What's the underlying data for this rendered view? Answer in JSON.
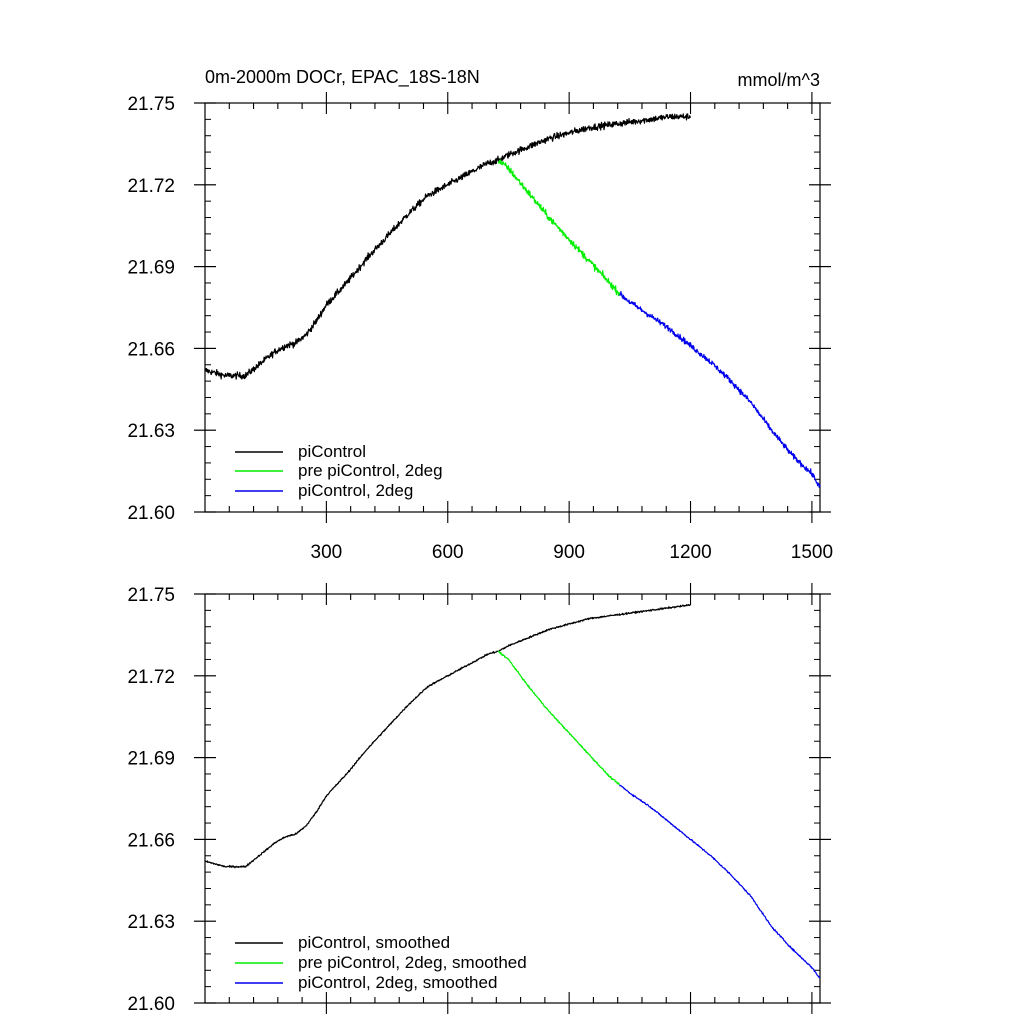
{
  "chart_data": [
    {
      "type": "line",
      "panel": "top",
      "title": "0m-2000m DOCr, EPAC_18S-18N",
      "units": "mmol/m^3",
      "xlabel": "",
      "ylabel": "",
      "xlim": [
        0,
        1520
      ],
      "ylim": [
        21.6,
        21.75
      ],
      "xticks": [
        300,
        600,
        900,
        1200,
        1500
      ],
      "xtick_labels": [
        "300",
        "600",
        "900",
        "1200",
        "1500"
      ],
      "yticks": [
        21.6,
        21.63,
        21.66,
        21.69,
        21.72,
        21.75
      ],
      "ytick_labels": [
        "21.60",
        "21.63",
        "21.66",
        "21.69",
        "21.72",
        "21.75"
      ],
      "legend_position": "bottom-left",
      "series": [
        {
          "name": "piControl",
          "color": "#000000",
          "noise": 0.0012,
          "x": [
            0,
            25,
            50,
            75,
            100,
            125,
            150,
            175,
            200,
            225,
            250,
            275,
            300,
            350,
            400,
            450,
            500,
            550,
            600,
            650,
            700,
            725,
            750,
            800,
            850,
            900,
            950,
            1000,
            1050,
            1100,
            1150,
            1200
          ],
          "y": [
            21.652,
            21.651,
            21.65,
            21.65,
            21.65,
            21.653,
            21.656,
            21.659,
            21.661,
            21.662,
            21.665,
            21.67,
            21.676,
            21.684,
            21.693,
            21.701,
            21.709,
            21.716,
            21.72,
            21.724,
            21.728,
            21.729,
            21.731,
            21.734,
            21.737,
            21.739,
            21.741,
            21.742,
            21.743,
            21.744,
            21.745,
            21.745
          ]
        },
        {
          "name": "pre piControl, 2deg",
          "color": "#00ee00",
          "noise": 0.0012,
          "x": [
            725,
            750,
            800,
            850,
            900,
            950,
            1000,
            1025
          ],
          "y": [
            21.729,
            21.726,
            21.717,
            21.708,
            21.7,
            21.692,
            21.684,
            21.68
          ]
        },
        {
          "name": "piControl, 2deg",
          "color": "#0000ee",
          "noise": 0.001,
          "x": [
            1025,
            1050,
            1100,
            1150,
            1200,
            1250,
            1300,
            1350,
            1400,
            1450,
            1500,
            1520
          ],
          "y": [
            21.68,
            21.677,
            21.672,
            21.667,
            21.661,
            21.655,
            21.648,
            21.64,
            21.63,
            21.621,
            21.614,
            21.609
          ]
        }
      ]
    },
    {
      "type": "line",
      "panel": "bottom",
      "title": "",
      "xlabel": "",
      "ylabel": "",
      "xlim": [
        0,
        1520
      ],
      "ylim": [
        21.6,
        21.75
      ],
      "xticks": [
        300,
        600,
        900,
        1200,
        1500
      ],
      "yticks": [
        21.6,
        21.63,
        21.66,
        21.69,
        21.72,
        21.75
      ],
      "ytick_labels": [
        "21.60",
        "21.63",
        "21.66",
        "21.69",
        "21.72",
        "21.75"
      ],
      "legend_position": "bottom-left",
      "series": [
        {
          "name": "piControl, smoothed",
          "color": "#000000",
          "noise": 0.0003,
          "x": [
            0,
            25,
            50,
            75,
            100,
            125,
            150,
            175,
            200,
            225,
            250,
            275,
            300,
            350,
            400,
            450,
            500,
            550,
            600,
            650,
            700,
            725,
            750,
            800,
            850,
            900,
            950,
            1000,
            1050,
            1100,
            1150,
            1200
          ],
          "y": [
            21.652,
            21.651,
            21.65,
            21.65,
            21.65,
            21.653,
            21.656,
            21.659,
            21.661,
            21.662,
            21.665,
            21.67,
            21.676,
            21.684,
            21.693,
            21.701,
            21.709,
            21.716,
            21.72,
            21.724,
            21.728,
            21.729,
            21.731,
            21.734,
            21.737,
            21.739,
            21.741,
            21.742,
            21.743,
            21.744,
            21.745,
            21.746
          ]
        },
        {
          "name": "pre piControl, 2deg, smoothed",
          "color": "#00ee00",
          "noise": 0.0003,
          "x": [
            725,
            750,
            800,
            850,
            900,
            950,
            1000,
            1025
          ],
          "y": [
            21.729,
            21.726,
            21.716,
            21.707,
            21.699,
            21.691,
            21.683,
            21.68
          ]
        },
        {
          "name": "piControl, 2deg, smoothed",
          "color": "#0000ee",
          "noise": 0.0003,
          "x": [
            1025,
            1050,
            1100,
            1150,
            1200,
            1250,
            1300,
            1350,
            1400,
            1450,
            1500,
            1520
          ],
          "y": [
            21.68,
            21.677,
            21.672,
            21.666,
            21.66,
            21.654,
            21.647,
            21.639,
            21.628,
            21.62,
            21.613,
            21.609
          ]
        }
      ]
    }
  ]
}
